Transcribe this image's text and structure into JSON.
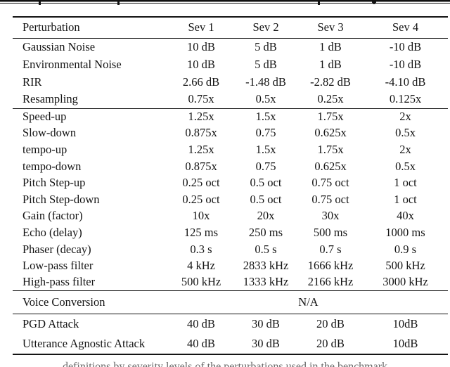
{
  "table": {
    "header": [
      "Perturbation",
      "Sev 1",
      "Sev 2",
      "Sev 3",
      "Sev 4"
    ],
    "sections": [
      {
        "rows": [
          [
            "Gaussian Noise",
            "10 dB",
            "5 dB",
            "1 dB",
            "-10 dB"
          ],
          [
            "Environmental Noise",
            "10 dB",
            "5 dB",
            "1 dB",
            "-10 dB"
          ],
          [
            "RIR",
            "2.66 dB",
            "-1.48 dB",
            "-2.82 dB",
            "-4.10 dB"
          ],
          [
            "Resampling",
            "0.75x",
            "0.5x",
            "0.25x",
            "0.125x"
          ]
        ]
      },
      {
        "rows": [
          [
            "Speed-up",
            "1.25x",
            "1.5x",
            "1.75x",
            "2x"
          ],
          [
            "Slow-down",
            "0.875x",
            "0.75",
            "0.625x",
            "0.5x"
          ],
          [
            "tempo-up",
            "1.25x",
            "1.5x",
            "1.75x",
            "2x"
          ],
          [
            "tempo-down",
            "0.875x",
            "0.75",
            "0.625x",
            "0.5x"
          ],
          [
            "Pitch Step-up",
            "0.25 oct",
            "0.5 oct",
            "0.75 oct",
            "1 oct"
          ],
          [
            "Pitch Step-down",
            "0.25 oct",
            "0.5 oct",
            "0.75 oct",
            "1 oct"
          ],
          [
            "Gain (factor)",
            "10x",
            "20x",
            "30x",
            "40x"
          ],
          [
            "Echo (delay)",
            "125 ms",
            "250 ms",
            "500 ms",
            "1000 ms"
          ],
          [
            "Phaser (decay)",
            "0.3 s",
            "0.5 s",
            "0.7 s",
            "0.9 s"
          ],
          [
            "Low-pass filter",
            "4 kHz",
            "2833 kHz",
            "1666 kHz",
            "500 kHz"
          ],
          [
            "High-pass filter",
            "500 kHz",
            "1333 kHz",
            "2166 kHz",
            "3000 kHz"
          ]
        ]
      },
      {
        "span_rows": [
          [
            "Voice Conversion",
            "N/A"
          ]
        ]
      },
      {
        "rows": [
          [
            "PGD Attack",
            "40 dB",
            "30 dB",
            "20 dB",
            "10dB"
          ],
          [
            "Utterance Agnostic Attack",
            "40 dB",
            "30 dB",
            "20 dB",
            "10dB"
          ]
        ]
      }
    ]
  },
  "cropped_edges": {
    "bottom_caption_fragment": "definitions by severity levels of the perturbations used in the benchmark"
  }
}
